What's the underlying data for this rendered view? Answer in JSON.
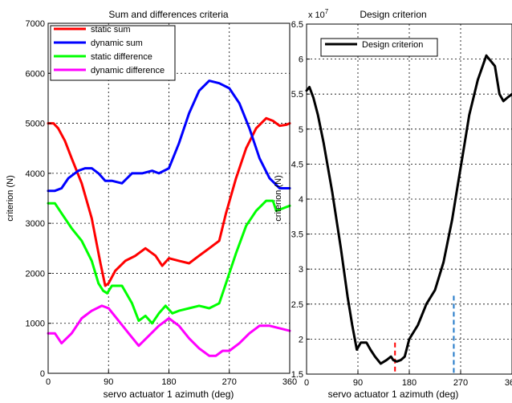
{
  "chart_data": [
    {
      "type": "line",
      "title": "Sum and differences criteria",
      "xlabel": "servo actuator 1 azimuth (deg)",
      "ylabel": "criterion (N)",
      "xlim": [
        0,
        360
      ],
      "ylim": [
        0,
        7000
      ],
      "xticks": [
        0,
        90,
        180,
        270,
        360
      ],
      "yticks": [
        0,
        1000,
        2000,
        3000,
        4000,
        5000,
        6000,
        7000
      ],
      "grid": true,
      "legend_position": "top-left",
      "series": [
        {
          "name": "static sum",
          "color": "#ff0000",
          "x": [
            0,
            8,
            15,
            25,
            35,
            50,
            65,
            78,
            85,
            90,
            100,
            115,
            130,
            145,
            160,
            170,
            180,
            195,
            210,
            225,
            240,
            255,
            265,
            280,
            295,
            310,
            325,
            335,
            345,
            355,
            360
          ],
          "y": [
            5000,
            5000,
            4900,
            4650,
            4300,
            3800,
            3100,
            2200,
            1750,
            1800,
            2050,
            2250,
            2350,
            2500,
            2350,
            2150,
            2300,
            2250,
            2200,
            2350,
            2500,
            2650,
            3200,
            3900,
            4500,
            4900,
            5100,
            5050,
            4950,
            4970,
            5000
          ]
        },
        {
          "name": "dynamic sum",
          "color": "#0000ff",
          "x": [
            0,
            10,
            20,
            30,
            45,
            55,
            65,
            75,
            85,
            95,
            110,
            125,
            140,
            155,
            165,
            180,
            195,
            210,
            225,
            240,
            255,
            270,
            285,
            300,
            315,
            330,
            345,
            360
          ],
          "y": [
            3650,
            3650,
            3700,
            3900,
            4050,
            4100,
            4100,
            4000,
            3850,
            3850,
            3800,
            4000,
            4000,
            4050,
            4000,
            4100,
            4600,
            5200,
            5650,
            5850,
            5800,
            5700,
            5400,
            4900,
            4300,
            3900,
            3700,
            3700
          ]
        },
        {
          "name": "static difference",
          "color": "#00ff00",
          "x": [
            0,
            10,
            20,
            35,
            50,
            65,
            75,
            82,
            88,
            95,
            110,
            125,
            135,
            145,
            155,
            165,
            175,
            185,
            195,
            210,
            225,
            240,
            255,
            265,
            280,
            295,
            310,
            325,
            335,
            340,
            350,
            360
          ],
          "y": [
            3400,
            3400,
            3200,
            2900,
            2650,
            2250,
            1800,
            1650,
            1600,
            1750,
            1750,
            1400,
            1050,
            1150,
            1000,
            1200,
            1350,
            1200,
            1250,
            1300,
            1350,
            1300,
            1400,
            1800,
            2400,
            2950,
            3250,
            3450,
            3450,
            3250,
            3300,
            3350
          ]
        },
        {
          "name": "dynamic difference",
          "color": "#ff00ff",
          "x": [
            0,
            10,
            20,
            35,
            50,
            65,
            80,
            90,
            105,
            120,
            135,
            150,
            165,
            180,
            195,
            210,
            225,
            240,
            250,
            260,
            270,
            285,
            300,
            315,
            330,
            345,
            360
          ],
          "y": [
            800,
            800,
            600,
            800,
            1100,
            1250,
            1350,
            1300,
            1050,
            800,
            550,
            750,
            950,
            1100,
            950,
            700,
            500,
            350,
            350,
            450,
            450,
            600,
            800,
            950,
            950,
            900,
            850
          ]
        }
      ]
    },
    {
      "type": "line",
      "title": "Design criterion",
      "xlabel": "servo actuator 1 azimuth (deg)",
      "ylabel": "criterion (N)",
      "exponent_label": "x 10",
      "exponent": "7",
      "xlim": [
        0,
        360
      ],
      "ylim": [
        1.5,
        6.5
      ],
      "xticks": [
        0,
        90,
        180,
        270,
        360
      ],
      "xtick_labels": [
        "0",
        "90",
        "180",
        "270",
        "360"
      ],
      "yticks": [
        1.5,
        2,
        2.5,
        3,
        3.5,
        4,
        4.5,
        5,
        5.5,
        6,
        6.5
      ],
      "ytick_labels": [
        "1.5",
        "2",
        "2.5",
        "3",
        "3.5",
        "4",
        "4.5",
        "5",
        "5.5",
        "6",
        "6.5"
      ],
      "grid": true,
      "legend_position": "top-left",
      "series": [
        {
          "name": "Design criterion",
          "color": "#000000",
          "x": [
            0,
            5,
            12,
            20,
            30,
            45,
            60,
            72,
            80,
            88,
            95,
            105,
            112,
            120,
            130,
            140,
            148,
            152,
            158,
            165,
            172,
            180,
            195,
            210,
            225,
            240,
            255,
            265,
            275,
            285,
            300,
            315,
            330,
            338,
            345,
            352,
            360
          ],
          "y": [
            5.55,
            5.6,
            5.45,
            5.2,
            4.8,
            4.1,
            3.3,
            2.6,
            2.2,
            1.85,
            1.95,
            1.95,
            1.85,
            1.75,
            1.65,
            1.7,
            1.75,
            1.7,
            1.68,
            1.7,
            1.75,
            2.0,
            2.2,
            2.5,
            2.7,
            3.1,
            3.7,
            4.2,
            4.7,
            5.2,
            5.7,
            6.05,
            5.9,
            5.5,
            5.4,
            5.45,
            5.5
          ]
        }
      ],
      "markers": [
        {
          "x": 155,
          "color": "#ff0000",
          "y_top": 1.95
        },
        {
          "x": 258,
          "color": "#1f77c8",
          "y_top": 2.62
        }
      ]
    }
  ]
}
